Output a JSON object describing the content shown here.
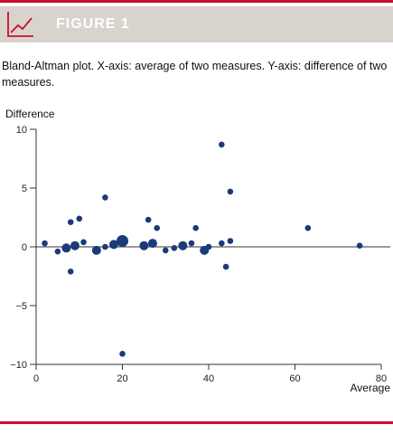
{
  "figure": {
    "label": "FIGURE 1",
    "caption": "Bland-Altman plot. X-axis: average of two measures. Y-axis: difference of two measures.",
    "header_icon": "line-chart-icon",
    "accent_color": "#c8102e",
    "header_color": "#d9d3cd",
    "point_color": "#1b3a7a"
  },
  "chart_data": {
    "type": "scatter",
    "title": "",
    "xlabel": "Average",
    "ylabel": "Difference",
    "xlim": [
      0,
      80
    ],
    "ylim": [
      -10,
      10
    ],
    "xticks": [
      0,
      20,
      40,
      60,
      80
    ],
    "yticks": [
      -10,
      -5,
      0,
      5,
      10
    ],
    "grid": false,
    "reference_line_y": 0,
    "series": [
      {
        "points": [
          {
            "x": 2,
            "y": 0.3,
            "w": 1
          },
          {
            "x": 5,
            "y": -0.4,
            "w": 1
          },
          {
            "x": 7,
            "y": -0.1,
            "w": 2
          },
          {
            "x": 8,
            "y": 2.1,
            "w": 1
          },
          {
            "x": 8,
            "y": -2.1,
            "w": 1
          },
          {
            "x": 9,
            "y": 0.1,
            "w": 2
          },
          {
            "x": 10,
            "y": 2.4,
            "w": 1
          },
          {
            "x": 11,
            "y": 0.4,
            "w": 1
          },
          {
            "x": 14,
            "y": -0.3,
            "w": 2
          },
          {
            "x": 16,
            "y": 4.2,
            "w": 1
          },
          {
            "x": 16,
            "y": 0.0,
            "w": 1
          },
          {
            "x": 18,
            "y": 0.2,
            "w": 2
          },
          {
            "x": 20,
            "y": 0.5,
            "w": 3
          },
          {
            "x": 20,
            "y": -9.1,
            "w": 1
          },
          {
            "x": 25,
            "y": 0.1,
            "w": 2
          },
          {
            "x": 26,
            "y": 2.3,
            "w": 1
          },
          {
            "x": 27,
            "y": 0.3,
            "w": 2
          },
          {
            "x": 28,
            "y": 1.6,
            "w": 1
          },
          {
            "x": 30,
            "y": -0.3,
            "w": 1
          },
          {
            "x": 32,
            "y": -0.1,
            "w": 1
          },
          {
            "x": 34,
            "y": 0.1,
            "w": 2
          },
          {
            "x": 36,
            "y": 0.3,
            "w": 1
          },
          {
            "x": 37,
            "y": 1.6,
            "w": 1
          },
          {
            "x": 39,
            "y": -0.3,
            "w": 2
          },
          {
            "x": 40,
            "y": 0.0,
            "w": 1
          },
          {
            "x": 43,
            "y": 0.3,
            "w": 1
          },
          {
            "x": 43,
            "y": 8.7,
            "w": 1
          },
          {
            "x": 44,
            "y": -1.7,
            "w": 1
          },
          {
            "x": 45,
            "y": 4.7,
            "w": 1
          },
          {
            "x": 45,
            "y": 0.5,
            "w": 1
          },
          {
            "x": 63,
            "y": 1.6,
            "w": 1
          },
          {
            "x": 75,
            "y": 0.1,
            "w": 1
          }
        ]
      }
    ]
  }
}
